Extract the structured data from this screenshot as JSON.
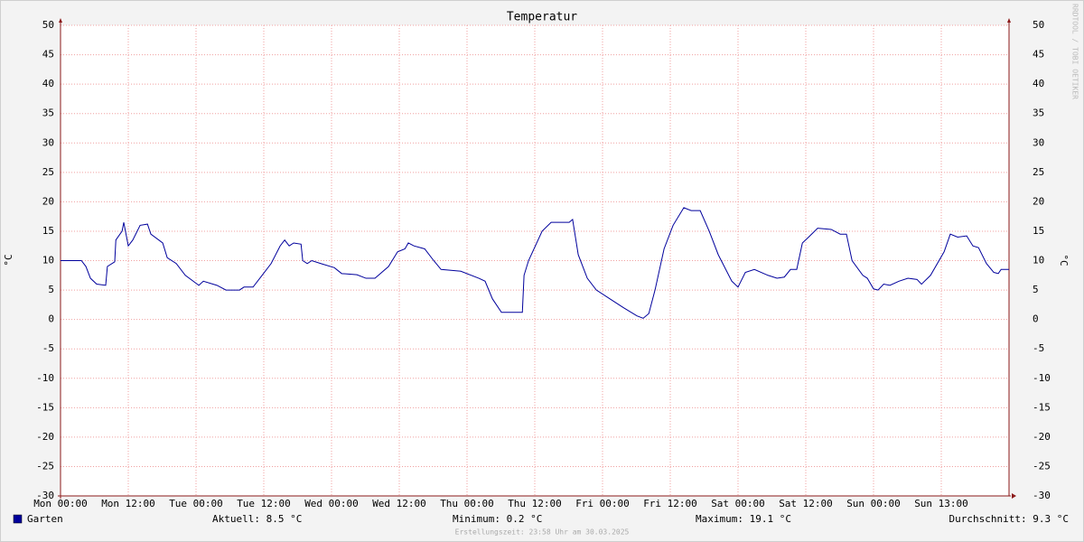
{
  "chart_data": {
    "type": "line",
    "title": "Temperatur",
    "y_label": "°C",
    "watermark": "RRDTOOL / TOBI OETIKER",
    "x": [
      0,
      3.7,
      4.5,
      5.3,
      6.4,
      8,
      8.3,
      9.6,
      9.8,
      10.9,
      11.2,
      12,
      12.8,
      14.1,
      15.4,
      16,
      18.1,
      18.9,
      20.5,
      22.1,
      24.5,
      25.3,
      27.7,
      29.3,
      31.7,
      32.5,
      34.1,
      35.7,
      37.3,
      38.9,
      39.7,
      40.5,
      41.3,
      42.6,
      42.9,
      43.7,
      44.5,
      46.1,
      48.5,
      49.8,
      52.5,
      54.1,
      55.7,
      58.1,
      59.7,
      61,
      61.6,
      62.6,
      64.5,
      66.1,
      67.4,
      70.9,
      74.1,
      75.2,
      76.5,
      78.1,
      81.8,
      82.1,
      82.9,
      85.3,
      86.9,
      90.1,
      90.7,
      91.7,
      93.3,
      94.9,
      97.3,
      99.7,
      102.1,
      103.2,
      104.2,
      105.3,
      106.9,
      108.5,
      110.4,
      111.7,
      113.3,
      114.9,
      116.5,
      118.9,
      120,
      121.3,
      122.9,
      125.3,
      126.9,
      128.2,
      129.3,
      130.4,
      131.4,
      132.5,
      134.1,
      136.5,
      138.1,
      139.2,
      140.2,
      142.1,
      142.9,
      144,
      144.8,
      145.8,
      146.9,
      148.5,
      150.1,
      151.7,
      152.5,
      154.1,
      156.5,
      157.6,
      158.9,
      160.5,
      161.6,
      162.6,
      164,
      165.3,
      166.1,
      166.6,
      168
    ],
    "series": [
      {
        "name": "Garten",
        "color": "#00009c",
        "values": [
          10,
          10,
          9,
          7,
          6,
          5.8,
          9,
          9.8,
          13.5,
          15,
          16.5,
          12.5,
          13.5,
          16,
          16.2,
          14.5,
          13,
          10.5,
          9.5,
          7.5,
          5.8,
          6.5,
          5.8,
          5,
          5,
          5.5,
          5.5,
          7.5,
          9.5,
          12.5,
          13.5,
          12.5,
          13,
          12.8,
          10,
          9.5,
          10,
          9.5,
          8.8,
          7.8,
          7.6,
          7,
          7,
          9,
          11.5,
          12,
          13,
          12.5,
          12,
          10,
          8.5,
          8.2,
          7,
          6.5,
          3.5,
          1.2,
          1.2,
          7.5,
          10,
          15,
          16.5,
          16.5,
          17,
          11,
          7,
          5,
          3.5,
          2,
          0.6,
          0.2,
          1,
          5,
          12,
          16,
          19,
          18.5,
          18.5,
          15,
          11,
          6.5,
          5.5,
          8,
          8.5,
          7.5,
          7,
          7.2,
          8.5,
          8.5,
          13,
          14,
          15.5,
          15.3,
          14.5,
          14.5,
          10,
          7.5,
          7,
          5.2,
          5,
          6,
          5.8,
          6.5,
          7,
          6.8,
          6,
          7.5,
          11.5,
          14.5,
          14,
          14.2,
          12.5,
          12.2,
          9.5,
          8,
          7.8,
          8.5,
          8.5
        ]
      }
    ],
    "xlim": [
      0,
      168
    ],
    "xticks": [
      {
        "value": 0,
        "label": "Mon 00:00"
      },
      {
        "value": 12,
        "label": "Mon 12:00"
      },
      {
        "value": 24,
        "label": "Tue 00:00"
      },
      {
        "value": 36,
        "label": "Tue 12:00"
      },
      {
        "value": 48,
        "label": "Wed 00:00"
      },
      {
        "value": 60,
        "label": "Wed 12:00"
      },
      {
        "value": 72,
        "label": "Thu 00:00"
      },
      {
        "value": 84,
        "label": "Thu 12:00"
      },
      {
        "value": 96,
        "label": "Fri 00:00"
      },
      {
        "value": 108,
        "label": "Fri 12:00"
      },
      {
        "value": 120,
        "label": "Sat 00:00"
      },
      {
        "value": 132,
        "label": "Sat 12:00"
      },
      {
        "value": 144,
        "label": "Sun 00:00"
      },
      {
        "value": 156,
        "label": "Sun 13:00"
      }
    ],
    "ylim": [
      -30,
      50
    ],
    "yticks": [
      -30,
      -25,
      -20,
      -15,
      -10,
      -5,
      0,
      5,
      10,
      15,
      20,
      25,
      30,
      35,
      40,
      45,
      50
    ],
    "grid": true,
    "stats": [
      "Aktuell: 8.5 °C",
      "Minimum: 0.2 °C",
      "Maximum: 19.1 °C",
      "Durchschnitt: 9.3 °C"
    ],
    "footnote": "Erstellungszeit: 23:58 Uhr am 30.03.2025"
  }
}
